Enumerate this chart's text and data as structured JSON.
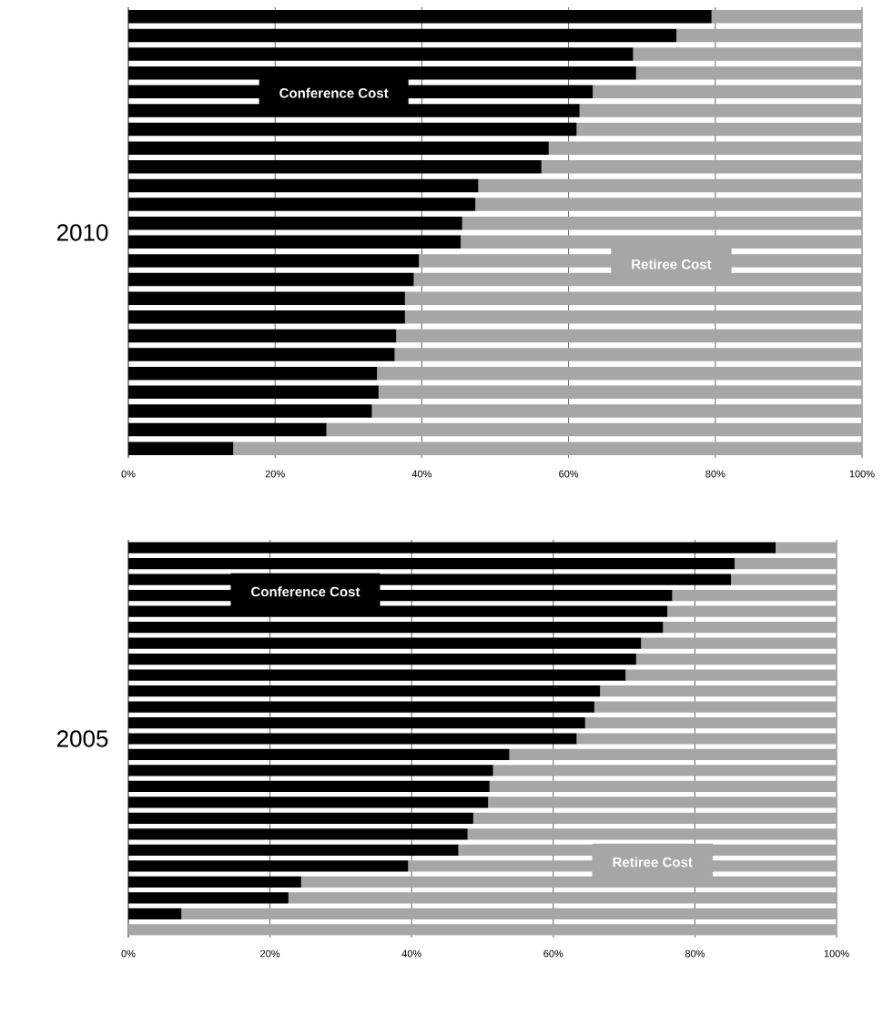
{
  "chart_data": [
    {
      "type": "bar",
      "orientation": "horizontal",
      "stacked": true,
      "ylabel": "2010",
      "categories": [
        null,
        null,
        null,
        null,
        null,
        null,
        null,
        null,
        null,
        null,
        null,
        null,
        null,
        null,
        null,
        null,
        null,
        null,
        null,
        null,
        null,
        null,
        null,
        null
      ],
      "series": [
        {
          "color": "#000000",
          "values": [
            79.5,
            74.7,
            68.8,
            69.2,
            63.3,
            61.5,
            61.1,
            57.3,
            56.3,
            47.7,
            47.3,
            45.5,
            45.3,
            39.6,
            38.9,
            37.7,
            37.7,
            36.5,
            36.3,
            33.9,
            34.1,
            33.2,
            27.0,
            14.3
          ]
        },
        {
          "color": "#a6a6a6",
          "values": [
            20.5,
            25.3,
            31.2,
            30.8,
            36.7,
            38.5,
            38.9,
            42.7,
            43.7,
            52.3,
            52.7,
            54.5,
            54.7,
            60.4,
            61.1,
            62.3,
            62.3,
            63.5,
            63.7,
            66.1,
            65.9,
            66.8,
            73.0,
            85.7
          ]
        }
      ],
      "xlim": [
        0,
        100
      ],
      "xticks": [
        {
          "value": 0,
          "label": "0%"
        },
        {
          "value": 20,
          "label": "20%"
        },
        {
          "value": 40,
          "label": "40%"
        },
        {
          "value": 60,
          "label": "60%"
        },
        {
          "value": 80,
          "label": "80%"
        },
        {
          "value": 100,
          "label": "100%"
        }
      ],
      "grid": "x",
      "annotations": [
        "Conference Cost",
        "Retiree Cost"
      ]
    },
    {
      "type": "bar",
      "orientation": "horizontal",
      "stacked": true,
      "ylabel": "2005",
      "categories": [
        null,
        null,
        null,
        null,
        null,
        null,
        null,
        null,
        null,
        null,
        null,
        null,
        null,
        null,
        null,
        null,
        null,
        null,
        null,
        null,
        null,
        null,
        null,
        null,
        null
      ],
      "series": [
        {
          "color": "#000000",
          "values": [
            91.4,
            85.6,
            85.1,
            76.8,
            76.1,
            75.5,
            72.4,
            71.7,
            70.2,
            66.6,
            65.8,
            64.5,
            63.3,
            53.8,
            51.5,
            51.0,
            50.8,
            48.7,
            47.9,
            46.6,
            39.5,
            24.4,
            22.6,
            7.5,
            0
          ]
        },
        {
          "color": "#a6a6a6",
          "values": [
            8.6,
            14.4,
            14.9,
            23.2,
            23.9,
            24.5,
            27.6,
            28.3,
            29.8,
            33.4,
            34.2,
            35.5,
            36.7,
            46.2,
            48.5,
            49.0,
            49.2,
            51.3,
            52.1,
            53.4,
            60.5,
            75.6,
            77.4,
            92.5,
            100
          ]
        }
      ],
      "xlim": [
        0,
        100
      ],
      "xticks": [
        {
          "value": 0,
          "label": "0%"
        },
        {
          "value": 20,
          "label": "20%"
        },
        {
          "value": 40,
          "label": "40%"
        },
        {
          "value": 60,
          "label": "60%"
        },
        {
          "value": 80,
          "label": "80%"
        },
        {
          "value": 100,
          "label": "100%"
        }
      ],
      "grid": "x",
      "annotations": [
        "Conference Cost",
        "Retiree Cost"
      ]
    }
  ]
}
